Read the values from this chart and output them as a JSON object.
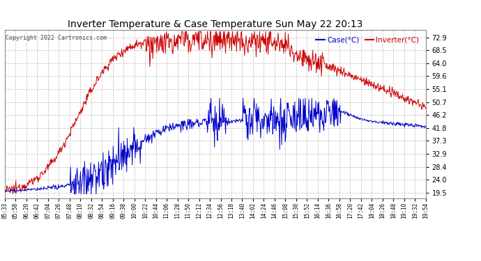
{
  "title": "Inverter Temperature & Case Temperature Sun May 22 20:13",
  "copyright": "Copyright 2022 Cartronics.com",
  "legend_case": "Case(°C)",
  "legend_inverter": "Inverter(°C)",
  "yticks": [
    19.5,
    24.0,
    28.4,
    32.9,
    37.3,
    41.8,
    46.2,
    50.7,
    55.1,
    59.6,
    64.0,
    68.5,
    72.9
  ],
  "ymin": 17.5,
  "ymax": 75.5,
  "xtick_labels": [
    "05:33",
    "05:58",
    "06:20",
    "06:42",
    "07:04",
    "07:26",
    "07:48",
    "08:10",
    "08:32",
    "08:54",
    "09:16",
    "09:38",
    "10:00",
    "10:22",
    "10:44",
    "11:06",
    "11:28",
    "11:50",
    "12:12",
    "12:34",
    "12:56",
    "13:18",
    "13:40",
    "14:02",
    "14:24",
    "14:46",
    "15:08",
    "15:30",
    "15:52",
    "16:14",
    "16:36",
    "16:58",
    "17:20",
    "17:42",
    "18:04",
    "18:26",
    "18:48",
    "19:10",
    "19:32",
    "19:54"
  ],
  "inverter_color": "#cc0000",
  "case_color": "#0000cc",
  "bg_color": "#ffffff",
  "grid_color": "#aaaaaa",
  "title_color": "#000000",
  "copyright_color": "#444444"
}
